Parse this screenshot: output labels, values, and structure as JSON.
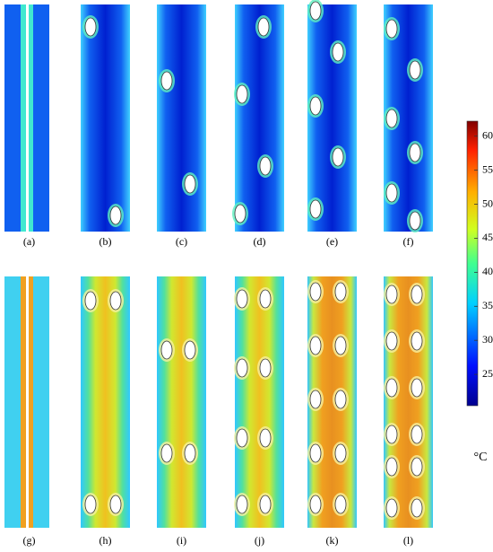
{
  "panels": {
    "labels": [
      "(a)",
      "(b)",
      "(c)",
      "(d)",
      "(e)",
      "(f)",
      "(g)",
      "(h)",
      "(i)",
      "(j)",
      "(k)",
      "(l)"
    ]
  },
  "colorbar": {
    "lim": [
      20.4,
      62.2
    ],
    "ticks": [
      25,
      30,
      35,
      40,
      45,
      50,
      55,
      60
    ],
    "unit": "°C"
  }
}
